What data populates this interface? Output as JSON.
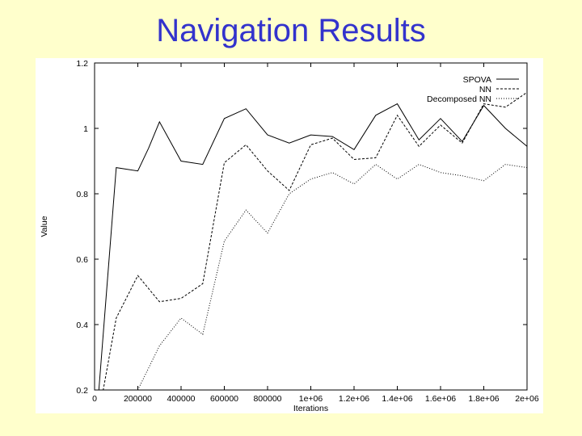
{
  "slide": {
    "title": "Navigation Results",
    "background": "#ffffcc",
    "title_color": "#3333cc"
  },
  "chart_data": {
    "type": "line",
    "title": "",
    "xlabel": "Iterations",
    "ylabel": "Value",
    "xlim": [
      0,
      2000000
    ],
    "ylim": [
      0.2,
      1.2
    ],
    "grid": false,
    "legend_position": "top-right",
    "x_ticks": [
      0,
      200000,
      400000,
      600000,
      800000,
      1000000,
      1200000,
      1400000,
      1600000,
      1800000,
      2000000
    ],
    "x_tick_labels": [
      "0",
      "200000",
      "400000",
      "600000",
      "800000",
      "1e+06",
      "1.2e+06",
      "1.4e+06",
      "1.6e+06",
      "1.8e+06",
      "2e+06"
    ],
    "y_ticks": [
      0.2,
      0.4,
      0.6,
      0.8,
      1.0,
      1.2
    ],
    "y_tick_labels": [
      "0.2",
      "0.4",
      "0.6",
      "0.8",
      "1",
      "1.2"
    ],
    "series": [
      {
        "name": "SPOVA",
        "style": "solid",
        "x": [
          0,
          20000,
          100000,
          200000,
          250000,
          300000,
          400000,
          500000,
          600000,
          700000,
          800000,
          900000,
          1000000,
          1100000,
          1200000,
          1300000,
          1400000,
          1500000,
          1600000,
          1700000,
          1800000,
          1900000,
          2000000
        ],
        "y": [
          0.2,
          0.2,
          0.88,
          0.87,
          0.94,
          1.02,
          0.9,
          0.89,
          1.03,
          1.06,
          0.98,
          0.955,
          0.98,
          0.975,
          0.935,
          1.04,
          1.075,
          0.965,
          1.03,
          0.96,
          1.07,
          1.0,
          0.945
        ]
      },
      {
        "name": "NN",
        "style": "dashed",
        "x": [
          0,
          40000,
          100000,
          200000,
          300000,
          400000,
          500000,
          600000,
          700000,
          800000,
          900000,
          1000000,
          1100000,
          1200000,
          1300000,
          1400000,
          1500000,
          1600000,
          1700000,
          1800000,
          1900000,
          2000000
        ],
        "y": [
          0.2,
          0.2,
          0.42,
          0.55,
          0.47,
          0.48,
          0.525,
          0.895,
          0.95,
          0.87,
          0.81,
          0.95,
          0.97,
          0.905,
          0.91,
          1.04,
          0.945,
          1.01,
          0.955,
          1.075,
          1.065,
          1.11
        ]
      },
      {
        "name": "Decomposed NN",
        "style": "dotted",
        "x": [
          200000,
          300000,
          400000,
          500000,
          600000,
          700000,
          800000,
          900000,
          1000000,
          1100000,
          1200000,
          1300000,
          1400000,
          1500000,
          1600000,
          1700000,
          1800000,
          1900000,
          2000000
        ],
        "y": [
          0.2,
          0.335,
          0.42,
          0.37,
          0.655,
          0.75,
          0.68,
          0.8,
          0.845,
          0.865,
          0.83,
          0.89,
          0.845,
          0.89,
          0.865,
          0.855,
          0.84,
          0.89,
          0.88
        ]
      }
    ]
  }
}
